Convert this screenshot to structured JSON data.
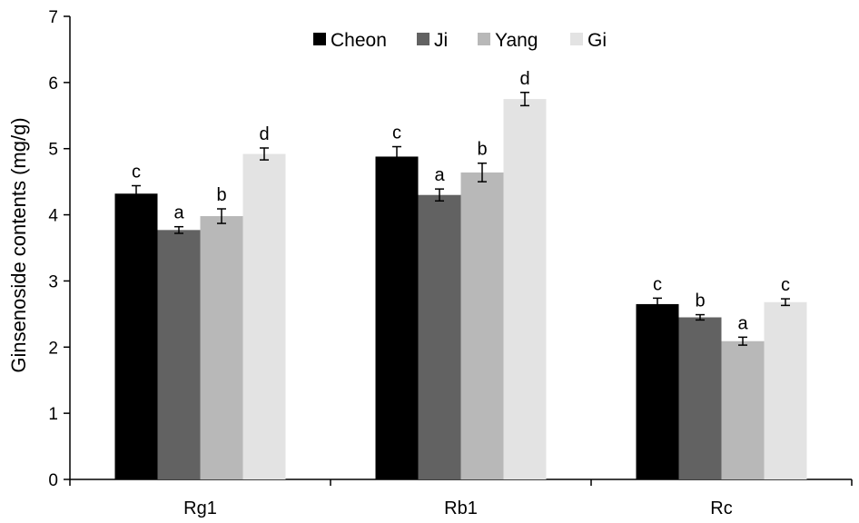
{
  "chart_data": {
    "type": "bar",
    "title": "",
    "xlabel": "",
    "ylabel": "Ginsenoside contents (mg/g)",
    "ylim": [
      0,
      7
    ],
    "yticks": [
      "0",
      "1",
      "2",
      "3",
      "4",
      "5",
      "6",
      "7"
    ],
    "grid": false,
    "legend_position": "top-center",
    "categories": [
      "Rg1",
      "Rb1",
      "Rc"
    ],
    "series": [
      {
        "name": "Cheon",
        "color": "#000000",
        "values": [
          4.32,
          4.88,
          2.65
        ],
        "errors": [
          0.12,
          0.15,
          0.09
        ],
        "letters": [
          "c",
          "c",
          "c"
        ]
      },
      {
        "name": "Ji",
        "color": "#626262",
        "values": [
          3.77,
          4.3,
          2.45
        ],
        "errors": [
          0.05,
          0.09,
          0.04
        ],
        "letters": [
          "a",
          "a",
          "b"
        ]
      },
      {
        "name": "Yang",
        "color": "#b8b8b8",
        "values": [
          3.98,
          4.64,
          2.09
        ],
        "errors": [
          0.11,
          0.14,
          0.06
        ],
        "letters": [
          "b",
          "b",
          "a"
        ]
      },
      {
        "name": "Gi",
        "color": "#e3e3e3",
        "values": [
          4.92,
          5.75,
          2.68
        ],
        "errors": [
          0.09,
          0.1,
          0.05
        ],
        "letters": [
          "d",
          "d",
          "c"
        ]
      }
    ]
  }
}
